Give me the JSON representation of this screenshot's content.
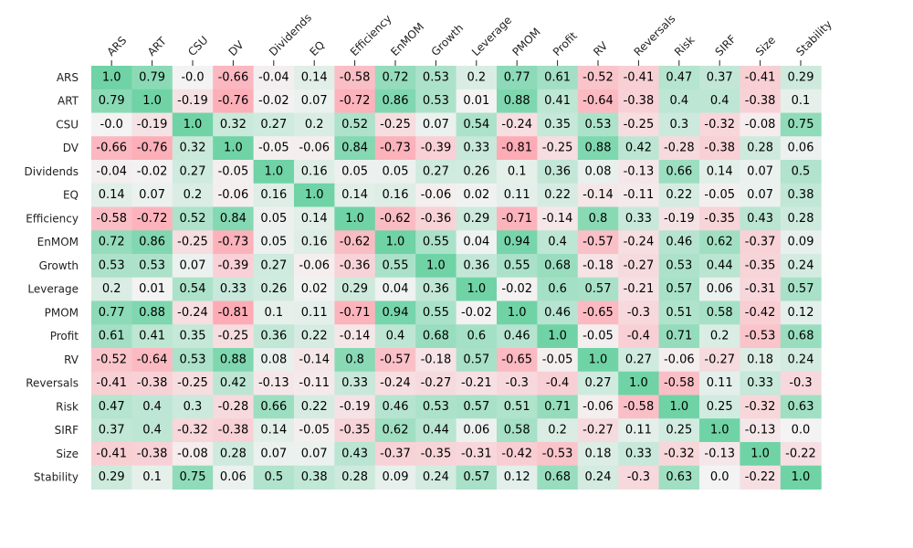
{
  "chart_data": {
    "type": "heatmap",
    "title": "",
    "xlabel": "",
    "ylabel": "",
    "colors": {
      "negative": "#ff9aa6",
      "neutral": "#f3f3f3",
      "positive": "#6fd3a6"
    },
    "categories": [
      "ARS",
      "ART",
      "CSU",
      "DV",
      "Dividends",
      "EQ",
      "Efficiency",
      "EnMOM",
      "Growth",
      "Leverage",
      "PMOM",
      "Profit",
      "RV",
      "Reversals",
      "Risk",
      "SIRF",
      "Size",
      "Stability"
    ],
    "matrix": [
      [
        1.0,
        0.79,
        -0.0,
        -0.66,
        -0.04,
        0.14,
        -0.58,
        0.72,
        0.53,
        0.2,
        0.77,
        0.61,
        -0.52,
        -0.41,
        0.47,
        0.37,
        -0.41,
        0.29
      ],
      [
        0.79,
        1.0,
        -0.19,
        -0.76,
        -0.02,
        0.07,
        -0.72,
        0.86,
        0.53,
        0.01,
        0.88,
        0.41,
        -0.64,
        -0.38,
        0.4,
        0.4,
        -0.38,
        0.1
      ],
      [
        -0.0,
        -0.19,
        1.0,
        0.32,
        0.27,
        0.2,
        0.52,
        -0.25,
        0.07,
        0.54,
        -0.24,
        0.35,
        0.53,
        -0.25,
        0.3,
        -0.32,
        -0.08,
        0.75
      ],
      [
        -0.66,
        -0.76,
        0.32,
        1.0,
        -0.05,
        -0.06,
        0.84,
        -0.73,
        -0.39,
        0.33,
        -0.81,
        -0.25,
        0.88,
        0.42,
        -0.28,
        -0.38,
        0.28,
        0.06
      ],
      [
        -0.04,
        -0.02,
        0.27,
        -0.05,
        1.0,
        0.16,
        0.05,
        0.05,
        0.27,
        0.26,
        0.1,
        0.36,
        0.08,
        -0.13,
        0.66,
        0.14,
        0.07,
        0.5
      ],
      [
        0.14,
        0.07,
        0.2,
        -0.06,
        0.16,
        1.0,
        0.14,
        0.16,
        -0.06,
        0.02,
        0.11,
        0.22,
        -0.14,
        -0.11,
        0.22,
        -0.05,
        0.07,
        0.38
      ],
      [
        -0.58,
        -0.72,
        0.52,
        0.84,
        0.05,
        0.14,
        1.0,
        -0.62,
        -0.36,
        0.29,
        -0.71,
        -0.14,
        0.8,
        0.33,
        -0.19,
        -0.35,
        0.43,
        0.28
      ],
      [
        0.72,
        0.86,
        -0.25,
        -0.73,
        0.05,
        0.16,
        -0.62,
        1.0,
        0.55,
        0.04,
        0.94,
        0.4,
        -0.57,
        -0.24,
        0.46,
        0.62,
        -0.37,
        0.09
      ],
      [
        0.53,
        0.53,
        0.07,
        -0.39,
        0.27,
        -0.06,
        -0.36,
        0.55,
        1.0,
        0.36,
        0.55,
        0.68,
        -0.18,
        -0.27,
        0.53,
        0.44,
        -0.35,
        0.24
      ],
      [
        0.2,
        0.01,
        0.54,
        0.33,
        0.26,
        0.02,
        0.29,
        0.04,
        0.36,
        1.0,
        -0.02,
        0.6,
        0.57,
        -0.21,
        0.57,
        0.06,
        -0.31,
        0.57
      ],
      [
        0.77,
        0.88,
        -0.24,
        -0.81,
        0.1,
        0.11,
        -0.71,
        0.94,
        0.55,
        -0.02,
        1.0,
        0.46,
        -0.65,
        -0.3,
        0.51,
        0.58,
        -0.42,
        0.12
      ],
      [
        0.61,
        0.41,
        0.35,
        -0.25,
        0.36,
        0.22,
        -0.14,
        0.4,
        0.68,
        0.6,
        0.46,
        1.0,
        -0.05,
        -0.4,
        0.71,
        0.2,
        -0.53,
        0.68
      ],
      [
        -0.52,
        -0.64,
        0.53,
        0.88,
        0.08,
        -0.14,
        0.8,
        -0.57,
        -0.18,
        0.57,
        -0.65,
        -0.05,
        1.0,
        0.27,
        -0.06,
        -0.27,
        0.18,
        0.24
      ],
      [
        -0.41,
        -0.38,
        -0.25,
        0.42,
        -0.13,
        -0.11,
        0.33,
        -0.24,
        -0.27,
        -0.21,
        -0.3,
        -0.4,
        0.27,
        1.0,
        -0.58,
        0.11,
        0.33,
        -0.3
      ],
      [
        0.47,
        0.4,
        0.3,
        -0.28,
        0.66,
        0.22,
        -0.19,
        0.46,
        0.53,
        0.57,
        0.51,
        0.71,
        -0.06,
        -0.58,
        1.0,
        0.25,
        -0.32,
        0.63
      ],
      [
        0.37,
        0.4,
        -0.32,
        -0.38,
        0.14,
        -0.05,
        -0.35,
        0.62,
        0.44,
        0.06,
        0.58,
        0.2,
        -0.27,
        0.11,
        0.25,
        1.0,
        -0.13,
        0.0
      ],
      [
        -0.41,
        -0.38,
        -0.08,
        0.28,
        0.07,
        0.07,
        0.43,
        -0.37,
        -0.35,
        -0.31,
        -0.42,
        -0.53,
        0.18,
        0.33,
        -0.32,
        -0.13,
        1.0,
        -0.22
      ],
      [
        0.29,
        0.1,
        0.75,
        0.06,
        0.5,
        0.38,
        0.28,
        0.09,
        0.24,
        0.57,
        0.12,
        0.68,
        0.24,
        -0.3,
        0.63,
        0.0,
        -0.22,
        1.0
      ]
    ],
    "cell_labels": [
      [
        "1.0",
        "0.79",
        "-0.0",
        "-0.66",
        "-0.04",
        "0.14",
        "-0.58",
        "0.72",
        "0.53",
        "0.2",
        "0.77",
        "0.61",
        "-0.52",
        "-0.41",
        "0.47",
        "0.37",
        "-0.41",
        "0.29"
      ],
      [
        "0.79",
        "1.0",
        "-0.19",
        "-0.76",
        "-0.02",
        "0.07",
        "-0.72",
        "0.86",
        "0.53",
        "0.01",
        "0.88",
        "0.41",
        "-0.64",
        "-0.38",
        "0.4",
        "0.4",
        "-0.38",
        "0.1"
      ],
      [
        "-0.0",
        "-0.19",
        "1.0",
        "0.32",
        "0.27",
        "0.2",
        "0.52",
        "-0.25",
        "0.07",
        "0.54",
        "-0.24",
        "0.35",
        "0.53",
        "-0.25",
        "0.3",
        "-0.32",
        "-0.08",
        "0.75"
      ],
      [
        "-0.66",
        "-0.76",
        "0.32",
        "1.0",
        "-0.05",
        "-0.06",
        "0.84",
        "-0.73",
        "-0.39",
        "0.33",
        "-0.81",
        "-0.25",
        "0.88",
        "0.42",
        "-0.28",
        "-0.38",
        "0.28",
        "0.06"
      ],
      [
        "-0.04",
        "-0.02",
        "0.27",
        "-0.05",
        "1.0",
        "0.16",
        "0.05",
        "0.05",
        "0.27",
        "0.26",
        "0.1",
        "0.36",
        "0.08",
        "-0.13",
        "0.66",
        "0.14",
        "0.07",
        "0.5"
      ],
      [
        "0.14",
        "0.07",
        "0.2",
        "-0.06",
        "0.16",
        "1.0",
        "0.14",
        "0.16",
        "-0.06",
        "0.02",
        "0.11",
        "0.22",
        "-0.14",
        "-0.11",
        "0.22",
        "-0.05",
        "0.07",
        "0.38"
      ],
      [
        "-0.58",
        "-0.72",
        "0.52",
        "0.84",
        "0.05",
        "0.14",
        "1.0",
        "-0.62",
        "-0.36",
        "0.29",
        "-0.71",
        "-0.14",
        "0.8",
        "0.33",
        "-0.19",
        "-0.35",
        "0.43",
        "0.28"
      ],
      [
        "0.72",
        "0.86",
        "-0.25",
        "-0.73",
        "0.05",
        "0.16",
        "-0.62",
        "1.0",
        "0.55",
        "0.04",
        "0.94",
        "0.4",
        "-0.57",
        "-0.24",
        "0.46",
        "0.62",
        "-0.37",
        "0.09"
      ],
      [
        "0.53",
        "0.53",
        "0.07",
        "-0.39",
        "0.27",
        "-0.06",
        "-0.36",
        "0.55",
        "1.0",
        "0.36",
        "0.55",
        "0.68",
        "-0.18",
        "-0.27",
        "0.53",
        "0.44",
        "-0.35",
        "0.24"
      ],
      [
        "0.2",
        "0.01",
        "0.54",
        "0.33",
        "0.26",
        "0.02",
        "0.29",
        "0.04",
        "0.36",
        "1.0",
        "-0.02",
        "0.6",
        "0.57",
        "-0.21",
        "0.57",
        "0.06",
        "-0.31",
        "0.57"
      ],
      [
        "0.77",
        "0.88",
        "-0.24",
        "-0.81",
        "0.1",
        "0.11",
        "-0.71",
        "0.94",
        "0.55",
        "-0.02",
        "1.0",
        "0.46",
        "-0.65",
        "-0.3",
        "0.51",
        "0.58",
        "-0.42",
        "0.12"
      ],
      [
        "0.61",
        "0.41",
        "0.35",
        "-0.25",
        "0.36",
        "0.22",
        "-0.14",
        "0.4",
        "0.68",
        "0.6",
        "0.46",
        "1.0",
        "-0.05",
        "-0.4",
        "0.71",
        "0.2",
        "-0.53",
        "0.68"
      ],
      [
        "-0.52",
        "-0.64",
        "0.53",
        "0.88",
        "0.08",
        "-0.14",
        "0.8",
        "-0.57",
        "-0.18",
        "0.57",
        "-0.65",
        "-0.05",
        "1.0",
        "0.27",
        "-0.06",
        "-0.27",
        "0.18",
        "0.24"
      ],
      [
        "-0.41",
        "-0.38",
        "-0.25",
        "0.42",
        "-0.13",
        "-0.11",
        "0.33",
        "-0.24",
        "-0.27",
        "-0.21",
        "-0.3",
        "-0.4",
        "0.27",
        "1.0",
        "-0.58",
        "0.11",
        "0.33",
        "-0.3"
      ],
      [
        "0.47",
        "0.4",
        "0.3",
        "-0.28",
        "0.66",
        "0.22",
        "-0.19",
        "0.46",
        "0.53",
        "0.57",
        "0.51",
        "0.71",
        "-0.06",
        "-0.58",
        "1.0",
        "0.25",
        "-0.32",
        "0.63"
      ],
      [
        "0.37",
        "0.4",
        "-0.32",
        "-0.38",
        "0.14",
        "-0.05",
        "-0.35",
        "0.62",
        "0.44",
        "0.06",
        "0.58",
        "0.2",
        "-0.27",
        "0.11",
        "0.25",
        "1.0",
        "-0.13",
        "0.0"
      ],
      [
        "-0.41",
        "-0.38",
        "-0.08",
        "0.28",
        "0.07",
        "0.07",
        "0.43",
        "-0.37",
        "-0.35",
        "-0.31",
        "-0.42",
        "-0.53",
        "0.18",
        "0.33",
        "-0.32",
        "-0.13",
        "1.0",
        "-0.22"
      ],
      [
        "0.29",
        "0.1",
        "0.75",
        "0.06",
        "0.5",
        "0.38",
        "0.28",
        "0.09",
        "0.24",
        "0.57",
        "0.12",
        "0.68",
        "0.24",
        "-0.3",
        "0.63",
        "0.0",
        "-0.22",
        "1.0"
      ]
    ],
    "value_range": [
      -1,
      1
    ],
    "legend": "none",
    "grid": false
  }
}
